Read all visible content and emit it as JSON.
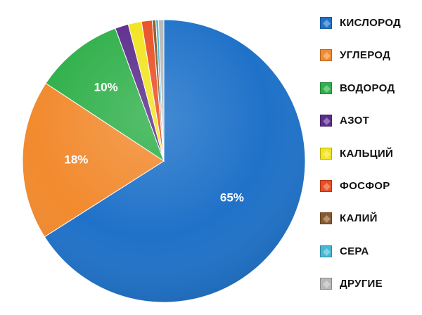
{
  "chart_data": {
    "type": "pie",
    "title": "",
    "slices": [
      {
        "name": "КИСЛОРОД",
        "value": 65,
        "color": "#1f72c9",
        "label": "65%"
      },
      {
        "name": "УГЛЕРОД",
        "value": 18,
        "color": "#f28a2e",
        "label": "18%"
      },
      {
        "name": "ВОДОРОД",
        "value": 10,
        "color": "#2fb04a",
        "label": "10%"
      },
      {
        "name": "АЗОТ",
        "value": 1.5,
        "color": "#5b2d8c",
        "label": ""
      },
      {
        "name": "КАЛЬЦИЙ",
        "value": 1.5,
        "color": "#f2e41f",
        "label": ""
      },
      {
        "name": "ФОСФОР",
        "value": 1.2,
        "color": "#e94e24",
        "label": ""
      },
      {
        "name": "КАЛИЙ",
        "value": 0.4,
        "color": "#8a5a2b",
        "label": ""
      },
      {
        "name": "СЕРА",
        "value": 0.3,
        "color": "#45b8d6",
        "label": ""
      },
      {
        "name": "ДРУГИЕ",
        "value": 0.6,
        "color": "#b8b8b8",
        "label": ""
      }
    ],
    "legend_placement": "right"
  }
}
